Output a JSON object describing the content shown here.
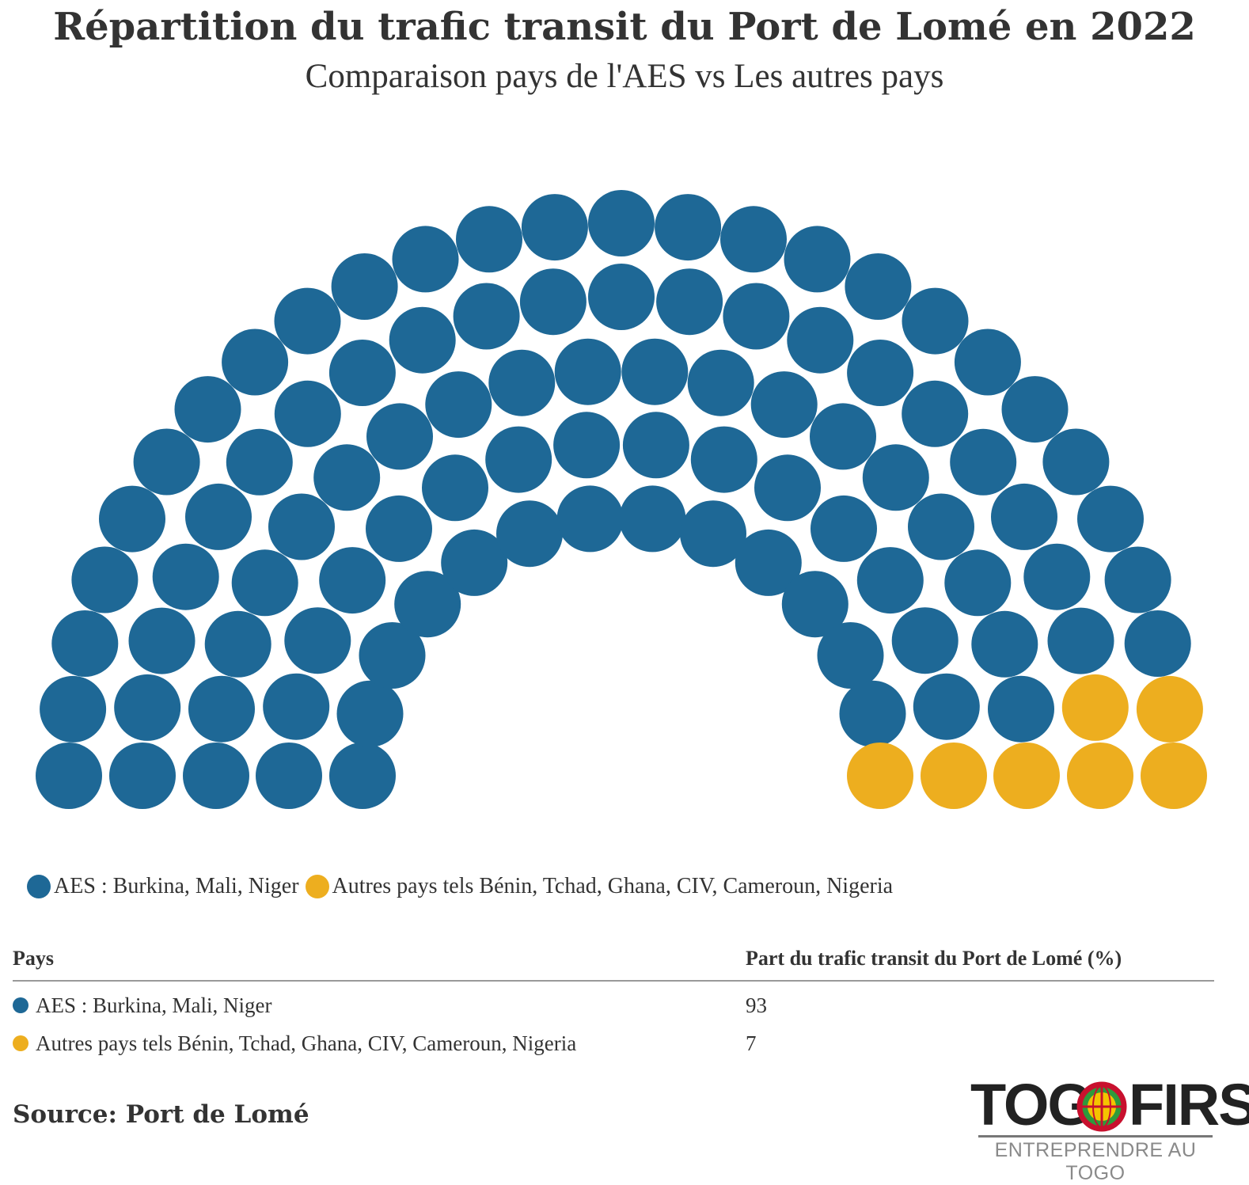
{
  "title": "Répartition du trafic transit du Port de Lomé en 2022",
  "subtitle": "Comparaison pays de l'AES vs Les autres pays",
  "chart_data": {
    "type": "parliament",
    "total_seats": 100,
    "series": [
      {
        "name": "AES : Burkina, Mali, Niger",
        "value": 93,
        "color": "#1e6896"
      },
      {
        "name": "Autres pays tels Bénin, Tchad, Ghana, CIV, Cameroun, Nigeria",
        "value": 7,
        "color": "#edae1f"
      }
    ]
  },
  "table": {
    "headers": [
      "Pays",
      "Part du trafic transit du Port de Lomé (%)"
    ],
    "rows": [
      {
        "label": "AES : Burkina, Mali, Niger",
        "value": "93",
        "color": "#1e6896"
      },
      {
        "label": "Autres pays tels Bénin, Tchad, Ghana, CIV, Cameroun, Nigeria",
        "value": "7",
        "color": "#edae1f"
      }
    ]
  },
  "source": "Source: Port de Lomé",
  "logo": {
    "text_left": "TOG",
    "text_right": "FIRST",
    "tagline": "ENTREPRENDRE AU TOGO"
  }
}
